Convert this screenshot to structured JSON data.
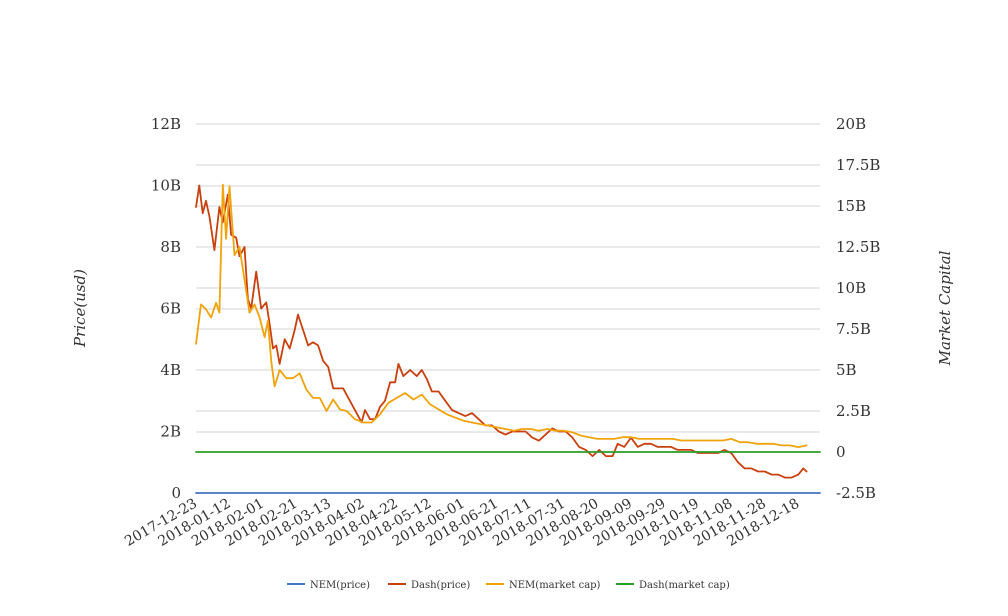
{
  "chart_data": {
    "type": "line",
    "title": "",
    "xlabel": "",
    "ylabel_left": "Price(usd)",
    "ylabel_right": "Market Capital",
    "y_left_ticks": [
      "0",
      "2B",
      "4B",
      "6B",
      "8B",
      "10B",
      "12B"
    ],
    "y_right_ticks": [
      "-2.5B",
      "0",
      "2.5B",
      "5B",
      "7.5B",
      "10B",
      "12.5B",
      "15B",
      "17.5B",
      "20B"
    ],
    "y_left_range": [
      0,
      12000000000
    ],
    "y_right_range": [
      -2500000000,
      20000000000
    ],
    "x_range": [
      "2017-12-23",
      "2018-12-31"
    ],
    "x_ticks": [
      "2017-12-23",
      "2018-01-12",
      "2018-02-01",
      "2018-02-21",
      "2018-03-13",
      "2018-04-02",
      "2018-04-22",
      "2018-05-12",
      "2018-06-01",
      "2018-06-21",
      "2018-07-11",
      "2018-07-31",
      "2018-08-20",
      "2018-09-09",
      "2018-09-29",
      "2018-10-19",
      "2018-11-08",
      "2018-11-28",
      "2018-12-18"
    ],
    "grid": true,
    "legend_position": "bottom",
    "series": [
      {
        "name": "NEM(price)",
        "axis": "left",
        "color": "#4472c4",
        "points": [
          [
            "2017-12-23",
            0
          ],
          [
            "2018-12-31",
            0
          ]
        ]
      },
      {
        "name": "Dash(price)",
        "axis": "left",
        "color": "#c9400f",
        "points": [
          [
            "2017-12-23",
            9300000000
          ],
          [
            "2017-12-25",
            10000000000
          ],
          [
            "2017-12-27",
            9100000000
          ],
          [
            "2017-12-29",
            9500000000
          ],
          [
            "2017-12-31",
            9000000000
          ],
          [
            "2018-01-03",
            7900000000
          ],
          [
            "2018-01-06",
            9300000000
          ],
          [
            "2018-01-08",
            8800000000
          ],
          [
            "2018-01-11",
            9700000000
          ],
          [
            "2018-01-13",
            8400000000
          ],
          [
            "2018-01-16",
            8300000000
          ],
          [
            "2018-01-18",
            7700000000
          ],
          [
            "2018-01-21",
            8000000000
          ],
          [
            "2018-01-23",
            6300000000
          ],
          [
            "2018-01-25",
            6000000000
          ],
          [
            "2018-01-28",
            7200000000
          ],
          [
            "2018-01-31",
            6000000000
          ],
          [
            "2018-02-03",
            6200000000
          ],
          [
            "2018-02-05",
            5500000000
          ],
          [
            "2018-02-07",
            4700000000
          ],
          [
            "2018-02-09",
            4800000000
          ],
          [
            "2018-02-11",
            4200000000
          ],
          [
            "2018-02-14",
            5000000000
          ],
          [
            "2018-02-17",
            4700000000
          ],
          [
            "2018-02-20",
            5300000000
          ],
          [
            "2018-02-22",
            5800000000
          ],
          [
            "2018-02-25",
            5300000000
          ],
          [
            "2018-02-28",
            4800000000
          ],
          [
            "2018-03-03",
            4900000000
          ],
          [
            "2018-03-06",
            4800000000
          ],
          [
            "2018-03-09",
            4300000000
          ],
          [
            "2018-03-12",
            4100000000
          ],
          [
            "2018-03-15",
            3400000000
          ],
          [
            "2018-03-18",
            3400000000
          ],
          [
            "2018-03-21",
            3400000000
          ],
          [
            "2018-03-25",
            3000000000
          ],
          [
            "2018-03-29",
            2600000000
          ],
          [
            "2018-04-01",
            2300000000
          ],
          [
            "2018-04-03",
            2700000000
          ],
          [
            "2018-04-06",
            2400000000
          ],
          [
            "2018-04-09",
            2400000000
          ],
          [
            "2018-04-12",
            2800000000
          ],
          [
            "2018-04-15",
            3000000000
          ],
          [
            "2018-04-18",
            3600000000
          ],
          [
            "2018-04-21",
            3600000000
          ],
          [
            "2018-04-23",
            4200000000
          ],
          [
            "2018-04-26",
            3800000000
          ],
          [
            "2018-04-30",
            4000000000
          ],
          [
            "2018-05-04",
            3800000000
          ],
          [
            "2018-05-07",
            4000000000
          ],
          [
            "2018-05-10",
            3700000000
          ],
          [
            "2018-05-13",
            3300000000
          ],
          [
            "2018-05-17",
            3300000000
          ],
          [
            "2018-05-21",
            3000000000
          ],
          [
            "2018-05-25",
            2700000000
          ],
          [
            "2018-05-29",
            2600000000
          ],
          [
            "2018-06-02",
            2500000000
          ],
          [
            "2018-06-06",
            2600000000
          ],
          [
            "2018-06-10",
            2400000000
          ],
          [
            "2018-06-14",
            2200000000
          ],
          [
            "2018-06-18",
            2200000000
          ],
          [
            "2018-06-22",
            2000000000
          ],
          [
            "2018-06-26",
            1900000000
          ],
          [
            "2018-06-30",
            2000000000
          ],
          [
            "2018-07-04",
            2000000000
          ],
          [
            "2018-07-08",
            2000000000
          ],
          [
            "2018-07-12",
            1800000000
          ],
          [
            "2018-07-16",
            1700000000
          ],
          [
            "2018-07-20",
            1900000000
          ],
          [
            "2018-07-24",
            2100000000
          ],
          [
            "2018-07-28",
            2000000000
          ],
          [
            "2018-08-01",
            2000000000
          ],
          [
            "2018-08-05",
            1800000000
          ],
          [
            "2018-08-09",
            1500000000
          ],
          [
            "2018-08-13",
            1400000000
          ],
          [
            "2018-08-17",
            1200000000
          ],
          [
            "2018-08-21",
            1400000000
          ],
          [
            "2018-08-25",
            1200000000
          ],
          [
            "2018-08-29",
            1200000000
          ],
          [
            "2018-09-01",
            1600000000
          ],
          [
            "2018-09-05",
            1500000000
          ],
          [
            "2018-09-09",
            1800000000
          ],
          [
            "2018-09-13",
            1500000000
          ],
          [
            "2018-09-17",
            1600000000
          ],
          [
            "2018-09-21",
            1600000000
          ],
          [
            "2018-09-25",
            1500000000
          ],
          [
            "2018-09-29",
            1500000000
          ],
          [
            "2018-10-03",
            1500000000
          ],
          [
            "2018-10-07",
            1400000000
          ],
          [
            "2018-10-11",
            1400000000
          ],
          [
            "2018-10-15",
            1400000000
          ],
          [
            "2018-10-19",
            1300000000
          ],
          [
            "2018-10-23",
            1300000000
          ],
          [
            "2018-10-27",
            1300000000
          ],
          [
            "2018-10-31",
            1300000000
          ],
          [
            "2018-11-04",
            1400000000
          ],
          [
            "2018-11-08",
            1300000000
          ],
          [
            "2018-11-12",
            1000000000
          ],
          [
            "2018-11-16",
            800000000
          ],
          [
            "2018-11-20",
            800000000
          ],
          [
            "2018-11-24",
            700000000
          ],
          [
            "2018-11-28",
            700000000
          ],
          [
            "2018-12-02",
            600000000
          ],
          [
            "2018-12-06",
            600000000
          ],
          [
            "2018-12-10",
            500000000
          ],
          [
            "2018-12-14",
            500000000
          ],
          [
            "2018-12-18",
            600000000
          ],
          [
            "2018-12-21",
            800000000
          ],
          [
            "2018-12-23",
            700000000
          ]
        ]
      },
      {
        "name": "NEM(market cap)",
        "axis": "right",
        "color": "#f0a30a",
        "points": [
          [
            "2017-12-23",
            6600000000
          ],
          [
            "2017-12-26",
            9000000000
          ],
          [
            "2017-12-29",
            8700000000
          ],
          [
            "2018-01-01",
            8200000000
          ],
          [
            "2018-01-04",
            9100000000
          ],
          [
            "2018-01-06",
            8500000000
          ],
          [
            "2018-01-08",
            16300000000
          ],
          [
            "2018-01-10",
            13000000000
          ],
          [
            "2018-01-12",
            16200000000
          ],
          [
            "2018-01-15",
            12000000000
          ],
          [
            "2018-01-18",
            12500000000
          ],
          [
            "2018-01-21",
            10500000000
          ],
          [
            "2018-01-24",
            8500000000
          ],
          [
            "2018-01-27",
            9000000000
          ],
          [
            "2018-01-30",
            8200000000
          ],
          [
            "2018-02-02",
            7000000000
          ],
          [
            "2018-02-04",
            8000000000
          ],
          [
            "2018-02-06",
            5500000000
          ],
          [
            "2018-02-08",
            4000000000
          ],
          [
            "2018-02-11",
            5000000000
          ],
          [
            "2018-02-15",
            4500000000
          ],
          [
            "2018-02-19",
            4500000000
          ],
          [
            "2018-02-23",
            4800000000
          ],
          [
            "2018-02-27",
            3800000000
          ],
          [
            "2018-03-03",
            3300000000
          ],
          [
            "2018-03-07",
            3300000000
          ],
          [
            "2018-03-11",
            2500000000
          ],
          [
            "2018-03-15",
            3200000000
          ],
          [
            "2018-03-19",
            2600000000
          ],
          [
            "2018-03-23",
            2500000000
          ],
          [
            "2018-03-28",
            2000000000
          ],
          [
            "2018-04-02",
            1800000000
          ],
          [
            "2018-04-07",
            1800000000
          ],
          [
            "2018-04-12",
            2300000000
          ],
          [
            "2018-04-17",
            3000000000
          ],
          [
            "2018-04-22",
            3300000000
          ],
          [
            "2018-04-27",
            3600000000
          ],
          [
            "2018-05-02",
            3200000000
          ],
          [
            "2018-05-07",
            3500000000
          ],
          [
            "2018-05-12",
            2900000000
          ],
          [
            "2018-05-17",
            2600000000
          ],
          [
            "2018-05-22",
            2300000000
          ],
          [
            "2018-05-27",
            2100000000
          ],
          [
            "2018-06-01",
            1900000000
          ],
          [
            "2018-06-06",
            1800000000
          ],
          [
            "2018-06-11",
            1700000000
          ],
          [
            "2018-06-16",
            1600000000
          ],
          [
            "2018-06-21",
            1500000000
          ],
          [
            "2018-06-26",
            1400000000
          ],
          [
            "2018-07-01",
            1300000000
          ],
          [
            "2018-07-06",
            1400000000
          ],
          [
            "2018-07-11",
            1400000000
          ],
          [
            "2018-07-16",
            1300000000
          ],
          [
            "2018-07-21",
            1400000000
          ],
          [
            "2018-07-26",
            1300000000
          ],
          [
            "2018-07-31",
            1300000000
          ],
          [
            "2018-08-05",
            1200000000
          ],
          [
            "2018-08-10",
            1000000000
          ],
          [
            "2018-08-15",
            900000000
          ],
          [
            "2018-08-20",
            800000000
          ],
          [
            "2018-08-25",
            800000000
          ],
          [
            "2018-08-30",
            800000000
          ],
          [
            "2018-09-04",
            900000000
          ],
          [
            "2018-09-09",
            900000000
          ],
          [
            "2018-09-14",
            800000000
          ],
          [
            "2018-09-19",
            800000000
          ],
          [
            "2018-09-24",
            800000000
          ],
          [
            "2018-09-29",
            800000000
          ],
          [
            "2018-10-04",
            800000000
          ],
          [
            "2018-10-09",
            700000000
          ],
          [
            "2018-10-14",
            700000000
          ],
          [
            "2018-10-19",
            700000000
          ],
          [
            "2018-10-24",
            700000000
          ],
          [
            "2018-10-29",
            700000000
          ],
          [
            "2018-11-03",
            700000000
          ],
          [
            "2018-11-08",
            800000000
          ],
          [
            "2018-11-13",
            600000000
          ],
          [
            "2018-11-18",
            600000000
          ],
          [
            "2018-11-23",
            500000000
          ],
          [
            "2018-11-28",
            500000000
          ],
          [
            "2018-12-03",
            500000000
          ],
          [
            "2018-12-08",
            400000000
          ],
          [
            "2018-12-13",
            400000000
          ],
          [
            "2018-12-18",
            300000000
          ],
          [
            "2018-12-23",
            400000000
          ]
        ]
      },
      {
        "name": "Dash(market cap)",
        "axis": "right",
        "color": "#2a9d2a",
        "points": [
          [
            "2017-12-23",
            0
          ],
          [
            "2018-12-31",
            0
          ]
        ]
      }
    ]
  }
}
